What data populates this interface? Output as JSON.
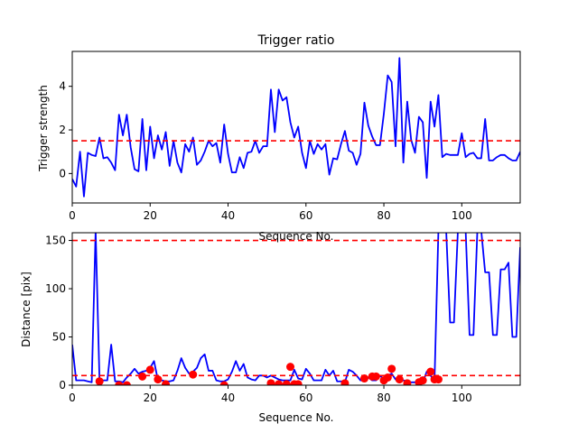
{
  "chart_data": [
    {
      "type": "line",
      "title": "Trigger ratio",
      "xlabel": "Sequence No.",
      "ylabel": "Trigger strength",
      "xlim": [
        0,
        115
      ],
      "ylim": [
        -1.35,
        5.6
      ],
      "xticks": [
        0,
        20,
        40,
        60,
        80,
        100
      ],
      "yticks": [
        0,
        2,
        4
      ],
      "grid": false,
      "colors": {
        "line": "#0000ff",
        "threshold": "#ff0000"
      },
      "threshold": 1.5,
      "series": [
        {
          "values": [
            -0.25,
            -0.6,
            1.0,
            -1.05,
            0.95,
            0.85,
            0.8,
            1.65,
            0.7,
            0.75,
            0.5,
            0.15,
            2.7,
            1.75,
            2.7,
            1.2,
            0.2,
            0.1,
            2.5,
            0.15,
            2.15,
            0.7,
            1.75,
            1.1,
            1.9,
            0.35,
            1.5,
            0.5,
            0.05,
            1.35,
            1.0,
            1.65,
            0.4,
            0.6,
            1.0,
            1.5,
            1.25,
            1.4,
            0.5,
            2.25,
            0.9,
            0.05,
            0.05,
            0.75,
            0.25,
            0.95,
            1.0,
            1.5,
            0.95,
            1.25,
            1.25,
            3.85,
            1.9,
            3.85,
            3.35,
            3.5,
            2.35,
            1.65,
            2.15,
            0.95,
            0.25,
            1.5,
            0.9,
            1.35,
            1.1,
            1.35,
            -0.05,
            0.7,
            0.65,
            1.35,
            1.95,
            1.05,
            0.95,
            0.4,
            0.9,
            3.25,
            2.2,
            1.7,
            1.3,
            1.3,
            2.75,
            4.5,
            4.2,
            1.25,
            5.3,
            0.5,
            3.3,
            1.55,
            0.95,
            2.6,
            2.35,
            -0.2,
            3.3,
            2.15,
            3.6,
            0.75,
            0.9,
            0.85,
            0.85,
            0.85,
            1.85,
            0.75,
            0.9,
            0.95,
            0.7,
            0.7,
            2.5,
            0.6,
            0.6,
            0.75,
            0.85,
            0.85,
            0.7,
            0.6,
            0.6,
            1.0
          ]
        }
      ]
    },
    {
      "type": "line",
      "xlabel": "Sequence No.",
      "ylabel": "Distance [pix]",
      "xlim": [
        0,
        115
      ],
      "ylim": [
        0,
        158
      ],
      "xticks": [
        0,
        20,
        40,
        60,
        80,
        100
      ],
      "yticks": [
        0,
        50,
        100,
        150
      ],
      "grid": false,
      "colors": {
        "line": "#0000ff",
        "threshold": "#ff0000",
        "markers": "#ff0000"
      },
      "thresholds": [
        150,
        10
      ],
      "series": [
        {
          "values": [
            42,
            5,
            5,
            5,
            4,
            3,
            160,
            5,
            5,
            5,
            42,
            4,
            4,
            3,
            8,
            12,
            17,
            12,
            14,
            15,
            18,
            25,
            5,
            5,
            4,
            4,
            5,
            15,
            28,
            18,
            12,
            14,
            18,
            28,
            32,
            15,
            15,
            5,
            4,
            4,
            6,
            14,
            25,
            15,
            22,
            8,
            6,
            5,
            10,
            10,
            8,
            10,
            8,
            6,
            5,
            5,
            5,
            16,
            7,
            6,
            17,
            12,
            5,
            5,
            5,
            16,
            10,
            15,
            4,
            4,
            3,
            16,
            14,
            10,
            5,
            5,
            8,
            5,
            5,
            10,
            6,
            10,
            12,
            6,
            5,
            5,
            4,
            3,
            3,
            3,
            3,
            14,
            10,
            4,
            160,
            160,
            160,
            65,
            65,
            160,
            160,
            160,
            52,
            52,
            160,
            160,
            117,
            117,
            52,
            52,
            120,
            120,
            127,
            50,
            50,
            143
          ]
        }
      ],
      "markers": {
        "x": [
          7,
          12,
          14,
          18,
          20,
          22,
          24,
          31,
          39,
          51,
          53,
          55,
          56,
          57,
          58,
          70,
          75,
          77,
          78,
          80,
          81,
          82,
          84,
          86,
          89,
          90,
          92,
          93,
          94
        ],
        "y": [
          4,
          0,
          0,
          9,
          16,
          6,
          1,
          11,
          0,
          2,
          1,
          1,
          19,
          1,
          1,
          2,
          7,
          9,
          9,
          5,
          8,
          17,
          6,
          2,
          3,
          5,
          14,
          6,
          6
        ]
      }
    }
  ]
}
